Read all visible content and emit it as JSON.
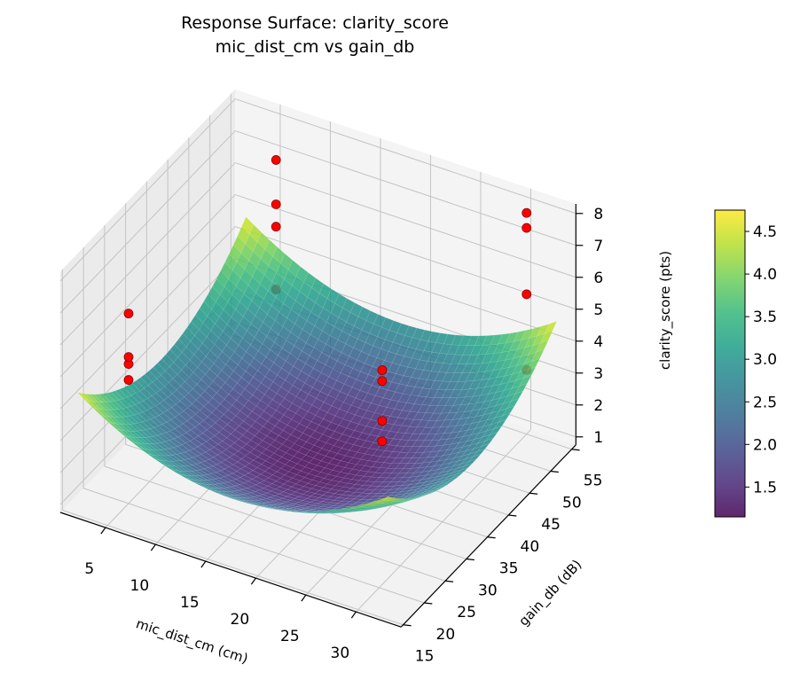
{
  "chart_data": {
    "type": "surface",
    "title": "Response Surface: clarity_score",
    "subtitle": "mic_dist_cm vs gain_db",
    "xlabel": "mic_dist_cm (cm)",
    "ylabel": "gain_db (dB)",
    "zlabel": "clarity_score (pts)",
    "xlim": [
      0.5,
      34.5
    ],
    "ylim": [
      14.5,
      56
    ],
    "zlim": [
      0.75,
      8.3
    ],
    "xticks": [
      5,
      10,
      15,
      20,
      25,
      30
    ],
    "yticks": [
      15,
      20,
      25,
      30,
      35,
      40,
      45,
      50,
      55
    ],
    "zticks": [
      1,
      2,
      3,
      4,
      5,
      6,
      7,
      8
    ],
    "grid": true,
    "colormap": "viridis",
    "surface": {
      "x_range": [
        2,
        33
      ],
      "y_range": [
        15,
        55
      ],
      "minimum": {
        "x": 17.5,
        "y": 35,
        "z": 1.2
      },
      "corner_z": 4.6
    },
    "scatter": {
      "color": "#ff0000",
      "edge_color": "#8b0000",
      "points": [
        {
          "x": 5,
          "y": 20,
          "z": 6.7
        },
        {
          "x": 5,
          "y": 20,
          "z": 5.34
        },
        {
          "x": 5,
          "y": 20,
          "z": 5.12
        },
        {
          "x": 5,
          "y": 20,
          "z": 4.62
        },
        {
          "x": 5,
          "y": 55,
          "z": 6.7
        },
        {
          "x": 5,
          "y": 55,
          "z": 5.31
        },
        {
          "x": 5,
          "y": 55,
          "z": 4.61
        },
        {
          "x": 5,
          "y": 55,
          "z": 2.64
        },
        {
          "x": 30,
          "y": 55,
          "z": 7.68
        },
        {
          "x": 30,
          "y": 55,
          "z": 7.21
        },
        {
          "x": 30,
          "y": 55,
          "z": 5.13
        },
        {
          "x": 30,
          "y": 55,
          "z": 2.76
        },
        {
          "x": 24,
          "y": 35,
          "z": 4.87
        },
        {
          "x": 24,
          "y": 35,
          "z": 4.53
        },
        {
          "x": 24,
          "y": 35,
          "z": 3.28
        },
        {
          "x": 24,
          "y": 35,
          "z": 2.64
        }
      ]
    },
    "colorbar": {
      "range": [
        1.15,
        4.75
      ],
      "ticks": [
        "1.5",
        "2.0",
        "2.5",
        "3.0",
        "3.5",
        "4.0",
        "4.5"
      ]
    }
  }
}
